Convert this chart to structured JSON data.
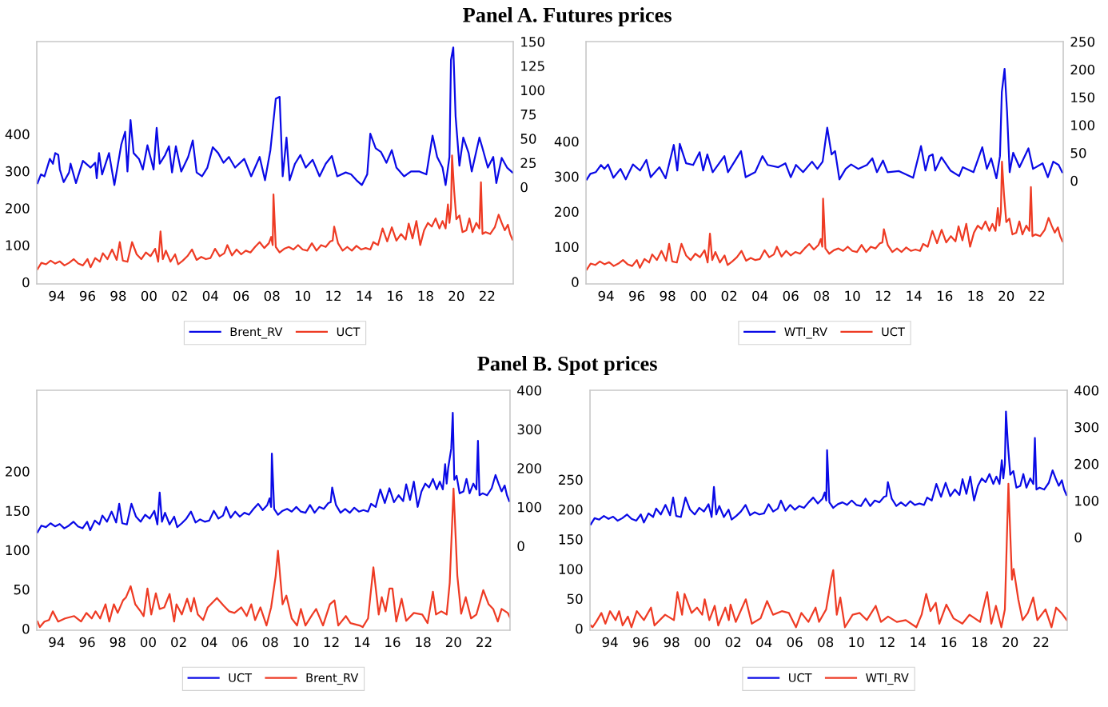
{
  "chart_data": [
    {
      "type": "line",
      "title": "Panel A. Futures prices",
      "legend": "bottom",
      "xlim": [
        1992.7,
        2023.7
      ],
      "xticks": [
        {
          "value": 1994,
          "label": "94"
        },
        {
          "value": 1996,
          "label": "96"
        },
        {
          "value": 1998,
          "label": "98"
        },
        {
          "value": 2000,
          "label": "00"
        },
        {
          "value": 2002,
          "label": "02"
        },
        {
          "value": 2004,
          "label": "04"
        },
        {
          "value": 2006,
          "label": "06"
        },
        {
          "value": 2008,
          "label": "08"
        },
        {
          "value": 2010,
          "label": "10"
        },
        {
          "value": 2012,
          "label": "12"
        },
        {
          "value": 2014,
          "label": "14"
        },
        {
          "value": 2016,
          "label": "16"
        },
        {
          "value": 2018,
          "label": "18"
        },
        {
          "value": 2020,
          "label": "20"
        },
        {
          "value": 2022,
          "label": "22"
        }
      ],
      "ylim": [
        -5,
        650
      ],
      "yticks": [
        0,
        100,
        200,
        300,
        400
      ],
      "y2lim": [
        -100,
        150
      ],
      "y2ticks": [
        0,
        25,
        50,
        75,
        100,
        125,
        150
      ],
      "series": [
        {
          "name": "Brent_RV",
          "color": "#0a0ae6",
          "axis": "y2",
          "x": [
            1992.75,
            1992.97,
            1993.2,
            1993.55,
            1993.75,
            1993.9,
            1994.1,
            1994.2,
            1994.45,
            1994.8,
            1994.9,
            1995.25,
            1995.7,
            1996.2,
            1996.5,
            1996.6,
            1996.75,
            1996.95,
            1997.4,
            1997.75,
            1998.2,
            1998.45,
            1998.6,
            1998.8,
            1999.0,
            1999.35,
            1999.6,
            1999.9,
            2000.3,
            2000.5,
            2000.7,
            2001.05,
            2001.3,
            2001.5,
            2001.75,
            2002.1,
            2002.55,
            2002.85,
            2003.1,
            2003.45,
            2003.8,
            2004.15,
            2004.5,
            2004.85,
            2005.2,
            2005.6,
            2006.2,
            2006.65,
            2007.2,
            2007.55,
            2007.9,
            2008.25,
            2008.5,
            2008.7,
            2008.95,
            2009.15,
            2009.5,
            2009.85,
            2010.2,
            2010.65,
            2011.1,
            2011.5,
            2011.9,
            2012.25,
            2012.8,
            2013.15,
            2013.5,
            2013.85,
            2014.2,
            2014.4,
            2014.75,
            2015.1,
            2015.45,
            2015.8,
            2016.1,
            2016.6,
            2017.05,
            2017.6,
            2018.05,
            2018.45,
            2018.75,
            2019.1,
            2019.3,
            2019.55,
            2019.65,
            2019.8,
            2019.95,
            2020.2,
            2020.45,
            2020.8,
            2021.0,
            2021.5,
            2021.7,
            2022.05,
            2022.4,
            2022.6,
            2022.95,
            2023.3,
            2023.65
          ],
          "values": [
            4,
            13,
            11,
            29,
            24,
            35,
            33,
            18,
            5,
            15,
            24,
            4,
            27,
            20,
            25,
            9,
            35,
            13,
            35,
            2,
            44,
            57,
            16,
            69,
            35,
            29,
            18,
            43,
            18,
            61,
            24,
            33,
            42,
            15,
            42,
            16,
            31,
            48,
            15,
            11,
            20,
            41,
            35,
            25,
            31,
            20,
            29,
            11,
            31,
            7,
            38,
            91,
            93,
            11,
            51,
            7,
            24,
            33,
            20,
            28,
            11,
            24,
            32,
            11,
            15,
            13,
            7,
            2,
            13,
            55,
            40,
            36,
            25,
            38,
            20,
            11,
            16,
            16,
            13,
            53,
            31,
            20,
            2,
            31,
            131,
            144,
            73,
            22,
            51,
            35,
            16,
            51,
            40,
            20,
            31,
            4,
            30,
            20,
            15
          ]
        },
        {
          "name": "UCT",
          "color": "#ee3b24",
          "x": [
            1992.75,
            1993.0,
            1993.3,
            1993.6,
            1993.9,
            1994.2,
            1994.5,
            1994.8,
            1995.1,
            1995.4,
            1995.7,
            1996.0,
            1996.2,
            1996.5,
            1996.8,
            1997.0,
            1997.3,
            1997.6,
            1997.9,
            1998.1,
            1998.3,
            1998.6,
            1998.9,
            1999.2,
            1999.5,
            1999.8,
            2000.1,
            2000.4,
            2000.6,
            2000.75,
            2000.9,
            2001.1,
            2001.4,
            2001.7,
            2001.9,
            2002.2,
            2002.5,
            2002.8,
            2003.1,
            2003.4,
            2003.7,
            2004.0,
            2004.3,
            2004.6,
            2004.9,
            2005.1,
            2005.4,
            2005.7,
            2006.0,
            2006.3,
            2006.6,
            2006.9,
            2007.2,
            2007.5,
            2007.8,
            2007.95,
            2008.05,
            2008.1,
            2008.25,
            2008.5,
            2008.8,
            2009.1,
            2009.4,
            2009.7,
            2010.0,
            2010.3,
            2010.6,
            2010.9,
            2011.2,
            2011.5,
            2011.8,
            2011.95,
            2012.05,
            2012.3,
            2012.6,
            2012.9,
            2013.2,
            2013.5,
            2013.8,
            2014.1,
            2014.4,
            2014.6,
            2014.9,
            2015.2,
            2015.5,
            2015.8,
            2016.1,
            2016.4,
            2016.7,
            2016.9,
            2017.15,
            2017.4,
            2017.65,
            2017.9,
            2018.15,
            2018.4,
            2018.65,
            2018.9,
            2019.1,
            2019.3,
            2019.45,
            2019.55,
            2019.65,
            2019.72,
            2019.85,
            2020.0,
            2020.2,
            2020.4,
            2020.65,
            2020.85,
            2021.05,
            2021.3,
            2021.5,
            2021.6,
            2021.7,
            2021.9,
            2022.2,
            2022.5,
            2022.75,
            2022.95,
            2023.15,
            2023.35,
            2023.5,
            2023.65
          ],
          "values": [
            35,
            52,
            48,
            58,
            50,
            56,
            45,
            52,
            62,
            50,
            45,
            62,
            40,
            65,
            55,
            78,
            62,
            88,
            60,
            108,
            58,
            55,
            108,
            75,
            62,
            80,
            70,
            90,
            55,
            137,
            62,
            85,
            55,
            75,
            48,
            58,
            70,
            88,
            60,
            68,
            62,
            65,
            90,
            70,
            78,
            100,
            72,
            88,
            75,
            85,
            80,
            95,
            108,
            92,
            105,
            122,
            100,
            237,
            95,
            80,
            90,
            95,
            88,
            100,
            88,
            85,
            105,
            85,
            100,
            95,
            110,
            112,
            150,
            105,
            85,
            95,
            85,
            98,
            88,
            92,
            88,
            108,
            100,
            145,
            110,
            148,
            112,
            130,
            115,
            158,
            118,
            165,
            100,
            140,
            160,
            150,
            172,
            145,
            165,
            145,
            210,
            160,
            200,
            342,
            250,
            170,
            180,
            135,
            140,
            172,
            135,
            160,
            145,
            270,
            130,
            135,
            130,
            148,
            182,
            160,
            140,
            155,
            130,
            115
          ]
        }
      ]
    },
    {
      "type": "line",
      "legend": "bottom",
      "xlim": [
        1992.7,
        2023.7
      ],
      "xticks": [
        {
          "value": 1994,
          "label": "94"
        },
        {
          "value": 1996,
          "label": "96"
        },
        {
          "value": 1998,
          "label": "98"
        },
        {
          "value": 2000,
          "label": "00"
        },
        {
          "value": 2002,
          "label": "02"
        },
        {
          "value": 2004,
          "label": "04"
        },
        {
          "value": 2006,
          "label": "06"
        },
        {
          "value": 2008,
          "label": "08"
        },
        {
          "value": 2010,
          "label": "10"
        },
        {
          "value": 2012,
          "label": "12"
        },
        {
          "value": 2014,
          "label": "14"
        },
        {
          "value": 2016,
          "label": "16"
        },
        {
          "value": 2018,
          "label": "18"
        },
        {
          "value": 2020,
          "label": "20"
        },
        {
          "value": 2022,
          "label": "22"
        }
      ],
      "ylim": [
        -6,
        684
      ],
      "yticks": [
        0,
        100,
        200,
        300,
        400
      ],
      "y2lim": [
        -186,
        250
      ],
      "y2ticks": [
        0,
        50,
        100,
        150,
        200,
        250
      ],
      "series": [
        {
          "name": "WTI_RV",
          "color": "#0a0ae6",
          "axis": "y2",
          "x": [
            1992.75,
            1992.98,
            1993.33,
            1993.67,
            1993.9,
            1994.13,
            1994.48,
            1994.94,
            1995.28,
            1995.75,
            1996.21,
            1996.62,
            1996.9,
            1997.47,
            1997.87,
            1998.4,
            1998.63,
            1998.79,
            1999.2,
            1999.66,
            2000.08,
            2000.31,
            2000.58,
            2000.93,
            2001.69,
            2001.92,
            2002.77,
            2003.07,
            2003.69,
            2004.16,
            2004.5,
            2005.19,
            2005.65,
            2006.0,
            2006.34,
            2006.8,
            2007.38,
            2007.73,
            2008.07,
            2008.37,
            2008.65,
            2008.88,
            2009.16,
            2009.57,
            2009.92,
            2010.38,
            2010.95,
            2011.3,
            2011.6,
            2011.99,
            2012.29,
            2013.03,
            2013.95,
            2014.46,
            2014.75,
            2014.99,
            2015.22,
            2015.38,
            2015.79,
            2016.37,
            2016.94,
            2017.17,
            2017.87,
            2018.44,
            2018.74,
            2019.02,
            2019.36,
            2019.59,
            2019.71,
            2019.89,
            2020.05,
            2020.22,
            2020.45,
            2020.86,
            2021.44,
            2021.74,
            2022.36,
            2022.7,
            2023.05,
            2023.4,
            2023.63
          ],
          "values": [
            2,
            12,
            15,
            28,
            21,
            29,
            5,
            21,
            2,
            29,
            18,
            37,
            6,
            24,
            4,
            64,
            18,
            66,
            31,
            28,
            51,
            18,
            47,
            15,
            44,
            15,
            53,
            6,
            15,
            44,
            28,
            24,
            31,
            6,
            28,
            15,
            34,
            21,
            34,
            95,
            47,
            53,
            2,
            21,
            29,
            21,
            28,
            40,
            15,
            36,
            15,
            17,
            5,
            62,
            18,
            44,
            47,
            18,
            42,
            18,
            8,
            24,
            15,
            60,
            21,
            40,
            4,
            44,
            159,
            201,
            124,
            15,
            50,
            24,
            58,
            21,
            31,
            6,
            34,
            28,
            15
          ]
        },
        {
          "name": "UCT",
          "color": "#ee3b24",
          "x": [
            1992.75,
            1993.0,
            1993.3,
            1993.6,
            1993.9,
            1994.2,
            1994.5,
            1994.8,
            1995.1,
            1995.4,
            1995.7,
            1996.0,
            1996.2,
            1996.5,
            1996.8,
            1997.0,
            1997.3,
            1997.6,
            1997.9,
            1998.1,
            1998.3,
            1998.6,
            1998.9,
            1999.2,
            1999.5,
            1999.8,
            2000.1,
            2000.4,
            2000.6,
            2000.75,
            2000.9,
            2001.1,
            2001.4,
            2001.7,
            2001.9,
            2002.2,
            2002.5,
            2002.8,
            2003.1,
            2003.4,
            2003.7,
            2004.0,
            2004.3,
            2004.6,
            2004.9,
            2005.1,
            2005.4,
            2005.7,
            2006.0,
            2006.3,
            2006.6,
            2006.9,
            2007.2,
            2007.5,
            2007.8,
            2007.95,
            2008.05,
            2008.1,
            2008.25,
            2008.5,
            2008.8,
            2009.1,
            2009.4,
            2009.7,
            2010.0,
            2010.3,
            2010.6,
            2010.9,
            2011.2,
            2011.5,
            2011.8,
            2011.95,
            2012.05,
            2012.3,
            2012.6,
            2012.9,
            2013.2,
            2013.5,
            2013.8,
            2014.1,
            2014.4,
            2014.6,
            2014.9,
            2015.2,
            2015.5,
            2015.8,
            2016.1,
            2016.4,
            2016.7,
            2016.9,
            2017.15,
            2017.4,
            2017.65,
            2017.9,
            2018.15,
            2018.4,
            2018.65,
            2018.9,
            2019.1,
            2019.3,
            2019.45,
            2019.55,
            2019.65,
            2019.72,
            2019.85,
            2020.0,
            2020.2,
            2020.4,
            2020.65,
            2020.85,
            2021.05,
            2021.3,
            2021.5,
            2021.6,
            2021.7,
            2021.9,
            2022.2,
            2022.5,
            2022.75,
            2022.95,
            2023.15,
            2023.35,
            2023.5,
            2023.65
          ],
          "values": [
            35,
            52,
            48,
            58,
            50,
            56,
            45,
            52,
            62,
            50,
            45,
            62,
            40,
            65,
            55,
            78,
            62,
            88,
            60,
            108,
            58,
            55,
            108,
            75,
            62,
            80,
            70,
            90,
            55,
            137,
            62,
            85,
            55,
            75,
            48,
            58,
            70,
            88,
            60,
            68,
            62,
            65,
            90,
            70,
            78,
            100,
            72,
            88,
            75,
            85,
            80,
            95,
            108,
            92,
            105,
            122,
            100,
            237,
            95,
            80,
            90,
            95,
            88,
            100,
            88,
            85,
            105,
            85,
            100,
            95,
            110,
            112,
            150,
            105,
            85,
            95,
            85,
            98,
            88,
            92,
            88,
            108,
            100,
            145,
            110,
            148,
            112,
            130,
            115,
            158,
            118,
            165,
            100,
            140,
            160,
            150,
            172,
            145,
            165,
            145,
            210,
            160,
            200,
            342,
            250,
            170,
            180,
            135,
            140,
            172,
            135,
            160,
            145,
            270,
            130,
            135,
            130,
            148,
            182,
            160,
            140,
            155,
            130,
            115
          ]
        }
      ]
    },
    {
      "type": "line",
      "title": "Panel B. Spot prices",
      "legend": "bottom",
      "xlim": [
        1992.7,
        2023.7
      ],
      "xticks": [
        {
          "value": 1994,
          "label": "94"
        },
        {
          "value": 1996,
          "label": "96"
        },
        {
          "value": 1998,
          "label": "98"
        },
        {
          "value": 2000,
          "label": "00"
        },
        {
          "value": 2002,
          "label": "02"
        },
        {
          "value": 2004,
          "label": "04"
        },
        {
          "value": 2006,
          "label": "06"
        },
        {
          "value": 2008,
          "label": "08"
        },
        {
          "value": 2010,
          "label": "10"
        },
        {
          "value": 2012,
          "label": "12"
        },
        {
          "value": 2014,
          "label": "14"
        },
        {
          "value": 2016,
          "label": "16"
        },
        {
          "value": 2018,
          "label": "18"
        },
        {
          "value": 2020,
          "label": "20"
        },
        {
          "value": 2022,
          "label": "22"
        }
      ],
      "ylim": [
        -2,
        303
      ],
      "yticks": [
        0,
        50,
        100,
        150,
        200
      ],
      "y2lim": [
        -217,
        400
      ],
      "y2ticks": [
        0,
        100,
        200,
        300,
        400
      ],
      "series": [
        {
          "name": "UCT",
          "color": "#0a0ae6",
          "axis": "y2",
          "x": [
            1992.75,
            1993.0,
            1993.3,
            1993.6,
            1993.9,
            1994.2,
            1994.5,
            1994.8,
            1995.1,
            1995.4,
            1995.7,
            1996.0,
            1996.2,
            1996.5,
            1996.8,
            1997.0,
            1997.3,
            1997.6,
            1997.9,
            1998.1,
            1998.3,
            1998.6,
            1998.9,
            1999.2,
            1999.5,
            1999.8,
            2000.1,
            2000.4,
            2000.6,
            2000.75,
            2000.9,
            2001.1,
            2001.4,
            2001.7,
            2001.9,
            2002.2,
            2002.5,
            2002.8,
            2003.1,
            2003.4,
            2003.7,
            2004.0,
            2004.3,
            2004.6,
            2004.9,
            2005.1,
            2005.4,
            2005.7,
            2006.0,
            2006.3,
            2006.6,
            2006.9,
            2007.2,
            2007.5,
            2007.8,
            2007.95,
            2008.05,
            2008.1,
            2008.25,
            2008.5,
            2008.8,
            2009.1,
            2009.4,
            2009.7,
            2010.0,
            2010.3,
            2010.6,
            2010.9,
            2011.2,
            2011.5,
            2011.8,
            2011.95,
            2012.05,
            2012.3,
            2012.6,
            2012.9,
            2013.2,
            2013.5,
            2013.8,
            2014.1,
            2014.4,
            2014.6,
            2014.9,
            2015.2,
            2015.5,
            2015.8,
            2016.1,
            2016.4,
            2016.7,
            2016.9,
            2017.15,
            2017.4,
            2017.65,
            2017.9,
            2018.15,
            2018.4,
            2018.65,
            2018.9,
            2019.1,
            2019.3,
            2019.45,
            2019.55,
            2019.65,
            2019.85,
            2019.95,
            2020.05,
            2020.2,
            2020.4,
            2020.65,
            2020.85,
            2021.05,
            2021.3,
            2021.5,
            2021.6,
            2021.7,
            2021.9,
            2022.2,
            2022.5,
            2022.75,
            2022.95,
            2023.15,
            2023.35,
            2023.5,
            2023.65
          ],
          "values": [
            35,
            52,
            48,
            58,
            50,
            56,
            45,
            52,
            62,
            50,
            45,
            62,
            40,
            65,
            55,
            78,
            62,
            88,
            60,
            108,
            58,
            55,
            108,
            75,
            62,
            80,
            70,
            90,
            55,
            137,
            62,
            85,
            55,
            75,
            48,
            58,
            70,
            88,
            60,
            68,
            62,
            65,
            90,
            70,
            78,
            100,
            72,
            88,
            75,
            85,
            80,
            95,
            108,
            92,
            105,
            122,
            100,
            237,
            95,
            80,
            90,
            95,
            88,
            100,
            88,
            85,
            105,
            85,
            100,
            95,
            110,
            112,
            150,
            105,
            85,
            95,
            85,
            98,
            88,
            92,
            88,
            108,
            100,
            145,
            110,
            148,
            112,
            130,
            115,
            158,
            118,
            165,
            100,
            140,
            160,
            150,
            172,
            145,
            165,
            145,
            210,
            160,
            200,
            250,
            342,
            170,
            180,
            135,
            140,
            172,
            135,
            160,
            145,
            270,
            130,
            135,
            130,
            148,
            182,
            160,
            140,
            155,
            130,
            115
          ]
        },
        {
          "name": "Brent_RV",
          "color": "#ee3b24",
          "x": [
            1992.75,
            1992.9,
            1993.2,
            1993.5,
            1993.75,
            1994.1,
            1994.55,
            1995.15,
            1995.6,
            1995.95,
            1996.3,
            1996.55,
            1996.85,
            1997.2,
            1997.45,
            1997.75,
            1998.0,
            1998.35,
            1998.55,
            1998.85,
            1999.15,
            1999.5,
            1999.7,
            1999.95,
            2000.2,
            2000.5,
            2000.75,
            2001.05,
            2001.4,
            2001.7,
            2001.85,
            2002.2,
            2002.55,
            2002.8,
            2003.0,
            2003.25,
            2003.6,
            2003.9,
            2004.5,
            2004.95,
            2005.3,
            2005.65,
            2006.1,
            2006.45,
            2006.75,
            2007.0,
            2007.35,
            2007.75,
            2008.05,
            2008.35,
            2008.5,
            2008.8,
            2009.05,
            2009.4,
            2009.75,
            2010.0,
            2010.3,
            2010.75,
            2011.0,
            2011.45,
            2011.9,
            2012.2,
            2012.45,
            2012.95,
            2013.25,
            2013.85,
            2014.05,
            2014.4,
            2014.75,
            2015.1,
            2015.3,
            2015.55,
            2015.8,
            2016.0,
            2016.25,
            2016.6,
            2016.9,
            2017.4,
            2017.95,
            2018.3,
            2018.65,
            2018.85,
            2019.2,
            2019.55,
            2019.75,
            2020.0,
            2020.25,
            2020.5,
            2020.8,
            2021.15,
            2021.5,
            2021.95,
            2022.3,
            2022.6,
            2022.9,
            2023.15,
            2023.55,
            2023.7
          ],
          "values": [
            9,
            2,
            9,
            11,
            22,
            9,
            13,
            16,
            9,
            20,
            13,
            22,
            13,
            31,
            9,
            31,
            20,
            36,
            40,
            54,
            31,
            22,
            16,
            51,
            18,
            45,
            25,
            27,
            44,
            9,
            31,
            18,
            38,
            22,
            39,
            18,
            11,
            27,
            39,
            29,
            22,
            20,
            27,
            16,
            31,
            11,
            27,
            4,
            27,
            67,
            99,
            31,
            42,
            13,
            4,
            25,
            4,
            18,
            25,
            4,
            31,
            36,
            4,
            16,
            7,
            4,
            2,
            13,
            78,
            18,
            40,
            22,
            51,
            51,
            9,
            38,
            10,
            20,
            18,
            7,
            47,
            18,
            22,
            18,
            58,
            178,
            67,
            19,
            40,
            13,
            18,
            49,
            31,
            25,
            9,
            25,
            20,
            14
          ]
        }
      ]
    },
    {
      "type": "line",
      "legend": "bottom",
      "xlim": [
        1992.7,
        2023.7
      ],
      "xticks": [
        {
          "value": 1994,
          "label": "94"
        },
        {
          "value": 1996,
          "label": "96"
        },
        {
          "value": 1998,
          "label": "98"
        },
        {
          "value": 2000,
          "label": "00"
        },
        {
          "value": 2002,
          "label": "02"
        },
        {
          "value": 2004,
          "label": "04"
        },
        {
          "value": 2006,
          "label": "06"
        },
        {
          "value": 2008,
          "label": "08"
        },
        {
          "value": 2010,
          "label": "10"
        },
        {
          "value": 2012,
          "label": "12"
        },
        {
          "value": 2014,
          "label": "14"
        },
        {
          "value": 2016,
          "label": "16"
        },
        {
          "value": 2018,
          "label": "18"
        },
        {
          "value": 2020,
          "label": "20"
        },
        {
          "value": 2022,
          "label": "22"
        }
      ],
      "ylim": [
        -3,
        400
      ],
      "yticks": [
        0,
        50,
        100,
        150,
        200,
        250
      ],
      "y2lim": [
        -253,
        400
      ],
      "y2ticks": [
        0,
        100,
        200,
        300,
        400
      ],
      "series": [
        {
          "name": "UCT",
          "color": "#0a0ae6",
          "axis": "y2",
          "x": [
            1992.75,
            1993.0,
            1993.3,
            1993.6,
            1993.9,
            1994.2,
            1994.5,
            1994.8,
            1995.1,
            1995.4,
            1995.7,
            1996.0,
            1996.2,
            1996.5,
            1996.8,
            1997.0,
            1997.3,
            1997.6,
            1997.9,
            1998.1,
            1998.3,
            1998.6,
            1998.9,
            1999.2,
            1999.5,
            1999.8,
            2000.1,
            2000.4,
            2000.6,
            2000.75,
            2000.9,
            2001.1,
            2001.4,
            2001.7,
            2001.9,
            2002.2,
            2002.5,
            2002.8,
            2003.1,
            2003.4,
            2003.7,
            2004.0,
            2004.3,
            2004.6,
            2004.9,
            2005.1,
            2005.4,
            2005.7,
            2006.0,
            2006.3,
            2006.6,
            2006.9,
            2007.2,
            2007.5,
            2007.8,
            2007.95,
            2008.05,
            2008.1,
            2008.25,
            2008.5,
            2008.8,
            2009.1,
            2009.4,
            2009.7,
            2010.0,
            2010.3,
            2010.6,
            2010.9,
            2011.2,
            2011.5,
            2011.8,
            2011.95,
            2012.05,
            2012.3,
            2012.6,
            2012.9,
            2013.2,
            2013.5,
            2013.8,
            2014.1,
            2014.4,
            2014.6,
            2014.9,
            2015.2,
            2015.5,
            2015.8,
            2016.1,
            2016.4,
            2016.7,
            2016.9,
            2017.15,
            2017.4,
            2017.65,
            2017.9,
            2018.15,
            2018.4,
            2018.65,
            2018.9,
            2019.1,
            2019.3,
            2019.45,
            2019.55,
            2019.65,
            2019.72,
            2019.85,
            2020.0,
            2020.2,
            2020.4,
            2020.65,
            2020.85,
            2021.05,
            2021.3,
            2021.5,
            2021.6,
            2021.7,
            2021.9,
            2022.2,
            2022.5,
            2022.75,
            2022.95,
            2023.15,
            2023.35,
            2023.5,
            2023.65
          ],
          "values": [
            35,
            52,
            48,
            58,
            50,
            56,
            45,
            52,
            62,
            50,
            45,
            62,
            40,
            65,
            55,
            78,
            62,
            88,
            60,
            108,
            58,
            55,
            108,
            75,
            62,
            80,
            70,
            90,
            55,
            137,
            62,
            85,
            55,
            75,
            48,
            58,
            70,
            88,
            60,
            68,
            62,
            65,
            90,
            70,
            78,
            100,
            72,
            88,
            75,
            85,
            80,
            95,
            108,
            92,
            105,
            122,
            100,
            237,
            95,
            80,
            90,
            95,
            88,
            100,
            88,
            85,
            105,
            85,
            100,
            95,
            110,
            112,
            150,
            105,
            85,
            95,
            85,
            98,
            88,
            92,
            88,
            108,
            100,
            145,
            110,
            148,
            112,
            130,
            115,
            158,
            118,
            165,
            100,
            140,
            160,
            150,
            172,
            145,
            165,
            145,
            210,
            160,
            200,
            342,
            250,
            170,
            180,
            135,
            140,
            172,
            135,
            160,
            145,
            270,
            130,
            135,
            130,
            148,
            182,
            160,
            140,
            155,
            130,
            115
          ]
        },
        {
          "name": "WTI_RV",
          "color": "#ee3b24",
          "x": [
            1992.75,
            1992.86,
            1993.1,
            1993.44,
            1993.7,
            1994.0,
            1994.36,
            1994.59,
            1994.82,
            1995.16,
            1995.39,
            1995.74,
            1996.2,
            1996.66,
            1996.89,
            1997.58,
            1998.15,
            1998.38,
            1998.68,
            1998.84,
            1999.3,
            1999.65,
            1999.99,
            2000.15,
            2000.45,
            2000.8,
            2001.03,
            2001.49,
            2001.72,
            2001.83,
            2002.17,
            2002.82,
            2003.21,
            2003.78,
            2004.2,
            2004.59,
            2005.16,
            2005.62,
            2006.08,
            2006.43,
            2006.89,
            2007.35,
            2007.58,
            2008.04,
            2008.38,
            2008.5,
            2008.73,
            2008.96,
            2009.26,
            2009.76,
            2010.22,
            2010.68,
            2011.26,
            2011.6,
            2012.06,
            2012.63,
            2013.21,
            2013.9,
            2014.24,
            2014.54,
            2014.82,
            2015.16,
            2015.39,
            2015.85,
            2016.31,
            2016.89,
            2017.35,
            2018.04,
            2018.5,
            2018.77,
            2019.07,
            2019.42,
            2019.65,
            2019.88,
            2020.11,
            2020.22,
            2020.52,
            2020.8,
            2021.14,
            2021.49,
            2021.76,
            2022.29,
            2022.68,
            2022.98,
            2023.32,
            2023.67
          ],
          "values": [
            5,
            2,
            11,
            26,
            8,
            29,
            14,
            29,
            5,
            20,
            2,
            29,
            14,
            35,
            5,
            23,
            14,
            61,
            23,
            58,
            26,
            35,
            23,
            49,
            14,
            38,
            5,
            35,
            14,
            40,
            11,
            49,
            8,
            17,
            46,
            23,
            29,
            26,
            2,
            26,
            11,
            35,
            11,
            32,
            85,
            98,
            23,
            52,
            2,
            23,
            26,
            14,
            38,
            11,
            20,
            11,
            14,
            2,
            23,
            58,
            29,
            43,
            8,
            40,
            17,
            8,
            23,
            11,
            61,
            8,
            38,
            2,
            32,
            243,
            82,
            100,
            49,
            14,
            26,
            52,
            14,
            32,
            2,
            35,
            26,
            14
          ]
        }
      ]
    }
  ]
}
